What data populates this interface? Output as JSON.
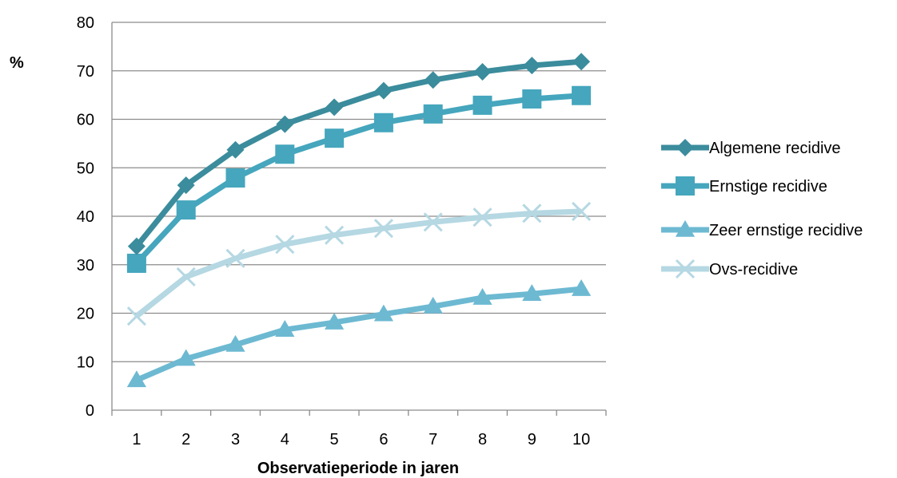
{
  "chart_data": {
    "type": "line",
    "title": "",
    "ylabel": "%",
    "xlabel": "Observatieperiode in jaren",
    "x": [
      1,
      2,
      3,
      4,
      5,
      6,
      7,
      8,
      9,
      10
    ],
    "ylim": [
      0,
      80
    ],
    "yticks": [
      0,
      10,
      20,
      30,
      40,
      50,
      60,
      70,
      80
    ],
    "grid": "horizontal",
    "legend": "right",
    "series": [
      {
        "name": "Algemene recidive",
        "marker": "diamond",
        "color": "#3b8c9c",
        "values": [
          33.8,
          46.4,
          53.7,
          59.0,
          62.5,
          65.9,
          68.1,
          69.8,
          71.1,
          71.9
        ]
      },
      {
        "name": "Ernstige recidive",
        "marker": "square",
        "color": "#45a6bd",
        "values": [
          30.3,
          41.3,
          47.9,
          52.8,
          56.1,
          59.3,
          61.1,
          62.9,
          64.2,
          64.9
        ]
      },
      {
        "name": "Zeer ernstige recidive",
        "marker": "triangle",
        "color": "#6db9d2",
        "values": [
          6.2,
          10.6,
          13.5,
          16.6,
          18.1,
          19.8,
          21.4,
          23.2,
          24.0,
          25.0
        ]
      },
      {
        "name": "Ovs-recidive",
        "marker": "x",
        "color": "#b5d8e3",
        "values": [
          19.4,
          27.5,
          31.3,
          34.2,
          36.1,
          37.5,
          38.8,
          39.8,
          40.6,
          41.0
        ]
      }
    ]
  }
}
